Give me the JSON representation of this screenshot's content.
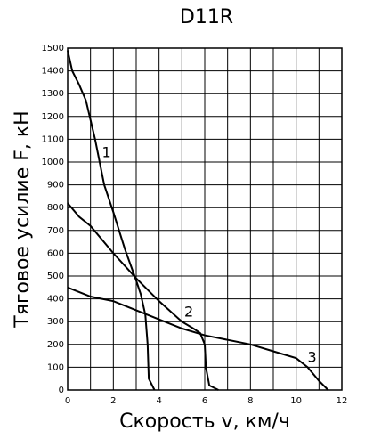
{
  "chart_data": {
    "type": "line",
    "title": "D11R",
    "x_label": "Скорость v, км/ч",
    "y_label": "Тяговое усилие F, кН",
    "xlim": [
      0,
      12
    ],
    "xticks": [
      0,
      2,
      4,
      6,
      8,
      10,
      12
    ],
    "ylim": [
      0,
      1500
    ],
    "yticks": [
      0,
      100,
      200,
      300,
      400,
      500,
      600,
      700,
      800,
      900,
      1000,
      1100,
      1200,
      1300,
      1400,
      1500
    ],
    "grid": true,
    "series": [
      {
        "name": "1",
        "color": "#000000",
        "x": [
          0,
          0.2,
          0.5,
          0.8,
          1.2,
          1.6,
          2,
          2.5,
          3,
          3.2,
          3.4,
          3.5,
          3.55,
          3.8
        ],
        "values": [
          1490,
          1400,
          1340,
          1270,
          1100,
          900,
          780,
          620,
          480,
          420,
          330,
          200,
          50,
          0
        ]
      },
      {
        "name": "2",
        "color": "#000000",
        "x": [
          0,
          0.5,
          1,
          2,
          3,
          4,
          5,
          5.5,
          5.8,
          6,
          6.05,
          6.2,
          6.6
        ],
        "values": [
          820,
          760,
          720,
          600,
          490,
          390,
          300,
          270,
          250,
          200,
          100,
          20,
          0
        ]
      },
      {
        "name": "3",
        "color": "#000000",
        "x": [
          0,
          1,
          2,
          3,
          4,
          5,
          6,
          7,
          8,
          9,
          10,
          10.5,
          11,
          11.4
        ],
        "values": [
          450,
          410,
          390,
          350,
          310,
          270,
          240,
          220,
          200,
          170,
          140,
          100,
          40,
          0
        ]
      }
    ]
  }
}
